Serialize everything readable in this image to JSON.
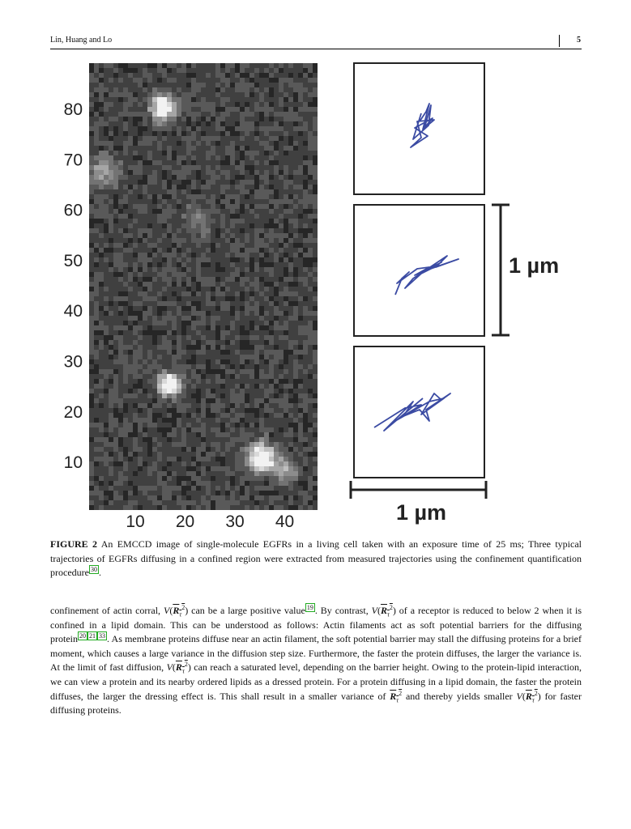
{
  "header": {
    "authors": "Lin, Huang and Lo",
    "page": "5"
  },
  "figure": {
    "image_y_ticks": [
      "80",
      "70",
      "60",
      "50",
      "40",
      "30",
      "20",
      "10"
    ],
    "image_x_ticks": [
      "10",
      "20",
      "30",
      "40"
    ],
    "scale_bar_vertical": "1 µm",
    "scale_bar_horizontal": "1 µm",
    "caption": {
      "label": "FIGURE 2",
      "runs": [
        {
          "text": " An EMCCD image of single-molecule EGFRs in a living cell taken with an exposure time of 25 ms; Three typical trajectories of EGFRs diffusing in a confined region were extracted from measured trajectories using the confinement quantification procedure"
        },
        {
          "refs": [
            "30"
          ]
        },
        {
          "text": "."
        }
      ]
    }
  },
  "body": {
    "runs": [
      {
        "text": "confinement of actin corral, "
      },
      {
        "math": {
          "fn": "V",
          "open": "(",
          "base": "R",
          "sub": "τ",
          "sup": "2",
          "close": ")"
        }
      },
      {
        "text": " can be a large positive value"
      },
      {
        "refs": [
          "19"
        ]
      },
      {
        "text": ". By contrast, "
      },
      {
        "math": {
          "fn": "V",
          "open": "(",
          "base": "R",
          "sub": "τ",
          "sup": "2",
          "close": ")"
        }
      },
      {
        "text": " of a receptor is reduced to below 2 when it is confined in a lipid domain. This can be understood as follows: Actin filaments act as soft potential barriers for the diffusing protein"
      },
      {
        "refs": [
          "20",
          "21",
          "33"
        ]
      },
      {
        "text": ". As membrane proteins diffuse near an actin filament, the soft potential barrier may stall the diffusing proteins for a brief moment, which causes a large variance in the diffusion step size. Furthermore, the faster the protein diffuses, the larger the variance is. At the limit of fast diffusion, "
      },
      {
        "math": {
          "fn": "V",
          "open": "(",
          "base": "R",
          "sub": "τ",
          "sup": "2",
          "close": ")"
        }
      },
      {
        "text": " can reach a saturated level, depending on the barrier height. Owing to the protein-lipid interaction, we can view a protein and its nearby ordered lipids as a dressed protein. For a protein diffusing in a lipid domain, the faster the protein diffuses, the larger the dressing effect is. This shall result in a smaller variance of "
      },
      {
        "math": {
          "base": "R",
          "sub": "τ",
          "sup": "2"
        }
      },
      {
        "text": " and thereby yields smaller "
      },
      {
        "math": {
          "fn": "V",
          "open": "(",
          "base": "R",
          "sub": "τ",
          "sup": "2",
          "close": ")"
        }
      },
      {
        "text": " for faster diffusing proteins."
      }
    ]
  }
}
